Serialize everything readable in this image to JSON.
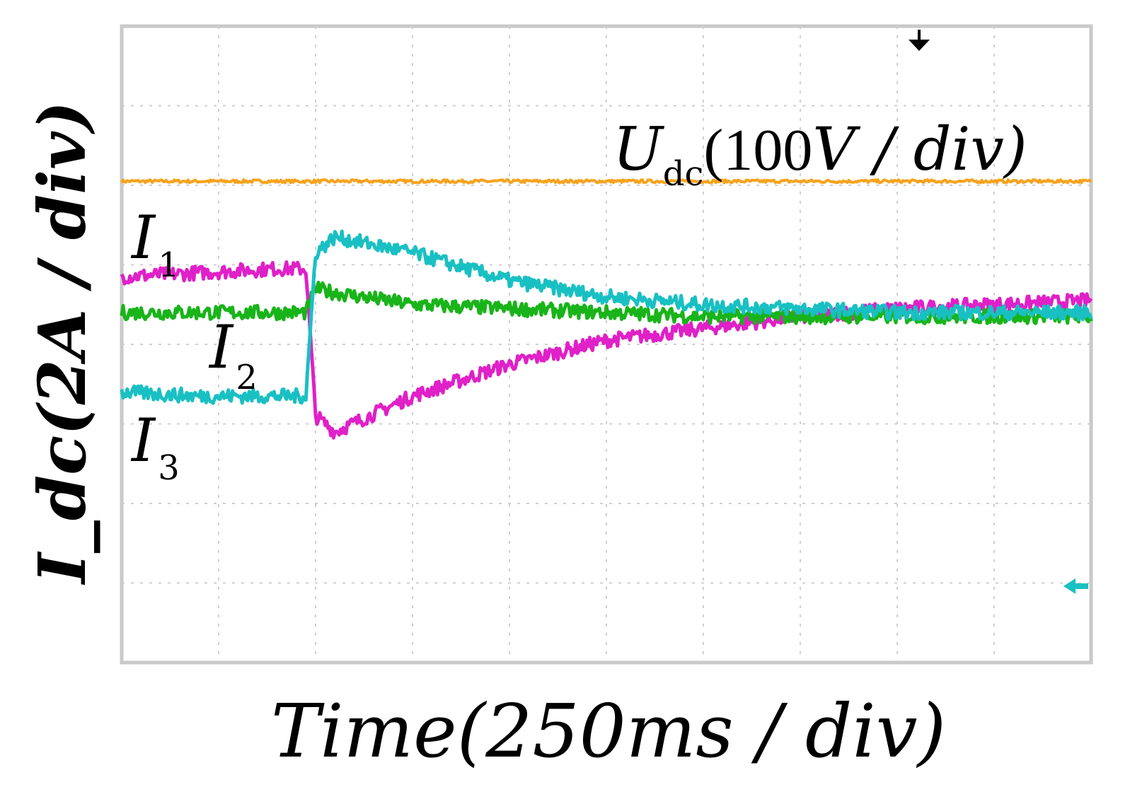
{
  "chart_data": {
    "type": "line",
    "x": [
      0,
      0.8,
      1.6,
      1.9,
      2.0,
      2.2,
      3.0,
      4.0,
      5.0,
      6.0,
      7.0,
      8.0,
      9.0,
      10.0
    ],
    "series": [
      {
        "name": "U_dc",
        "color": "#f7a21e",
        "values": [
          6.05,
          6.05,
          6.05,
          6.05,
          6.05,
          6.05,
          6.05,
          6.05,
          6.05,
          6.05,
          6.05,
          6.05,
          6.05,
          6.05
        ]
      },
      {
        "name": "I_1",
        "color": "#e020c8",
        "values": [
          4.85,
          4.9,
          4.95,
          4.95,
          3.1,
          2.9,
          3.35,
          3.75,
          4.05,
          4.2,
          4.35,
          4.45,
          4.5,
          4.55
        ]
      },
      {
        "name": "I_2",
        "color": "#19b419",
        "values": [
          4.4,
          4.4,
          4.4,
          4.4,
          4.7,
          4.65,
          4.5,
          4.45,
          4.4,
          4.35,
          4.35,
          4.35,
          4.35,
          4.35
        ]
      },
      {
        "name": "I_3",
        "color": "#19c0c3",
        "values": [
          3.4,
          3.35,
          3.35,
          3.35,
          5.15,
          5.35,
          5.15,
          4.8,
          4.6,
          4.5,
          4.45,
          4.4,
          4.4,
          4.4
        ]
      }
    ],
    "xlim": [
      0,
      10
    ],
    "ylim": [
      0,
      8
    ],
    "grid": true,
    "xlabel": "Time(250ms / div)",
    "ylabel": "I_dc(2A / div)",
    "annotations": {
      "udc": {
        "main": "U",
        "sub": "dc",
        "rest": "(100",
        "v": "V",
        "tail": " / div)"
      },
      "i1": {
        "main": "I",
        "sub": "1"
      },
      "i2": {
        "main": "I",
        "sub": "2"
      },
      "i3": {
        "main": "I",
        "sub": "3"
      }
    },
    "markers": {
      "trigger_color": "#000000",
      "ground_color": "#19c0c3"
    }
  }
}
